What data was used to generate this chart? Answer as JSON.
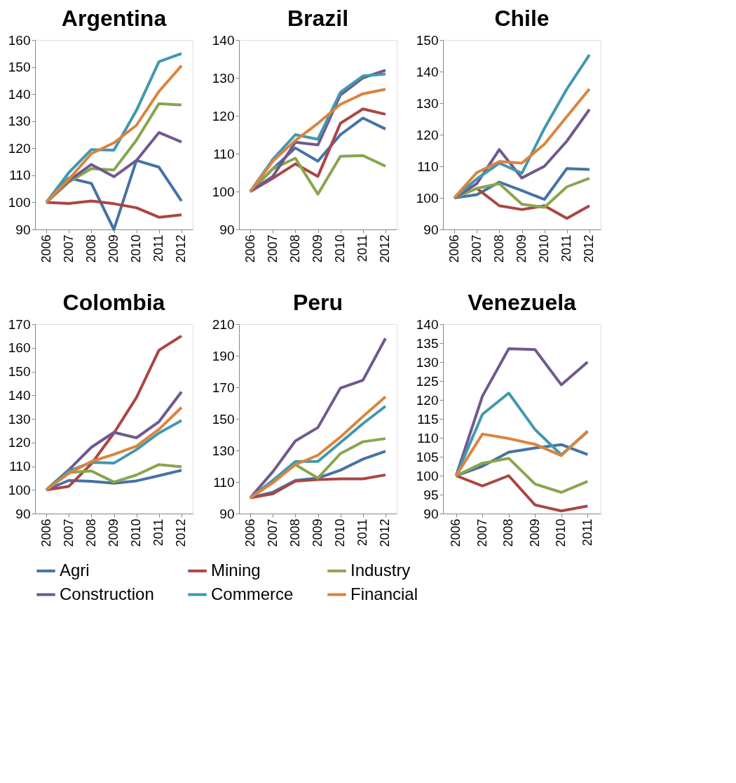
{
  "chart_data": [
    {
      "type": "line",
      "title": "Argentina",
      "categories": [
        "2006",
        "2007",
        "2008",
        "2009",
        "2010",
        "2011",
        "2012"
      ],
      "ylim": [
        90,
        160
      ],
      "yticks": [
        90,
        100,
        110,
        120,
        130,
        140,
        150,
        160
      ],
      "grid": false,
      "legend": "bottom",
      "series": [
        {
          "name": "Agri",
          "color": "#4572a7",
          "values": [
            100,
            109,
            107,
            90,
            115.5,
            113,
            100.5
          ]
        },
        {
          "name": "Mining",
          "color": "#aa4643",
          "values": [
            100,
            99.6,
            100.5,
            99.5,
            98,
            94.5,
            95.4
          ]
        },
        {
          "name": "Industry",
          "color": "#89a54e",
          "values": [
            100,
            107.5,
            112.5,
            112,
            123,
            136.5,
            136
          ]
        },
        {
          "name": "Construction",
          "color": "#71588f",
          "values": [
            100,
            108,
            114,
            109.5,
            115.5,
            125.8,
            122.3
          ]
        },
        {
          "name": "Commerce",
          "color": "#4198af",
          "values": [
            100,
            111,
            119.5,
            119.3,
            134,
            152,
            155
          ]
        },
        {
          "name": "Financial",
          "color": "#db843d",
          "values": [
            100,
            108.5,
            118,
            122,
            128.5,
            141,
            150.5
          ]
        }
      ]
    },
    {
      "type": "line",
      "title": "Brazil",
      "categories": [
        "2006",
        "2007",
        "2008",
        "2009",
        "2010",
        "2011",
        "2012"
      ],
      "ylim": [
        90,
        140
      ],
      "yticks": [
        90,
        100,
        110,
        120,
        130,
        140
      ],
      "grid": false,
      "series": [
        {
          "name": "Agri",
          "color": "#4572a7",
          "values": [
            100,
            106,
            111.5,
            108,
            115,
            119.4,
            116.5
          ]
        },
        {
          "name": "Mining",
          "color": "#aa4643",
          "values": [
            100,
            103.5,
            107.3,
            104,
            118,
            121.8,
            120.4
          ]
        },
        {
          "name": "Industry",
          "color": "#89a54e",
          "values": [
            100,
            106,
            108.8,
            99.3,
            109.3,
            109.5,
            106.7
          ]
        },
        {
          "name": "Construction",
          "color": "#71588f",
          "values": [
            100,
            104,
            113,
            112.3,
            125.5,
            130,
            132
          ]
        },
        {
          "name": "Commerce",
          "color": "#4198af",
          "values": [
            100,
            108.5,
            115,
            113.8,
            126.2,
            130.5,
            131
          ]
        },
        {
          "name": "Financial",
          "color": "#db843d",
          "values": [
            100,
            108,
            113.5,
            118,
            123,
            125.8,
            127
          ]
        }
      ]
    },
    {
      "type": "line",
      "title": "Chile",
      "categories": [
        "2006",
        "2007",
        "2008",
        "2009",
        "2010",
        "2011",
        "2012"
      ],
      "ylim": [
        90,
        150
      ],
      "yticks": [
        90,
        100,
        110,
        120,
        130,
        140,
        150
      ],
      "grid": false,
      "series": [
        {
          "name": "Agri",
          "color": "#4572a7",
          "values": [
            100,
            101,
            105,
            102.3,
            99.5,
            109.3,
            109
          ]
        },
        {
          "name": "Mining",
          "color": "#aa4643",
          "values": [
            100,
            103,
            97.5,
            96.3,
            97.5,
            93.5,
            97.5
          ]
        },
        {
          "name": "Industry",
          "color": "#89a54e",
          "values": [
            100,
            103,
            104.5,
            98,
            97,
            103.5,
            106.2
          ]
        },
        {
          "name": "Construction",
          "color": "#71588f",
          "values": [
            100,
            104.5,
            115.3,
            106.3,
            110,
            118,
            128
          ]
        },
        {
          "name": "Commerce",
          "color": "#4198af",
          "values": [
            100,
            106,
            111,
            107.8,
            122,
            134.5,
            145.3
          ]
        },
        {
          "name": "Financial",
          "color": "#db843d",
          "values": [
            100,
            108,
            111.5,
            111,
            117,
            125.8,
            134.5
          ]
        }
      ]
    },
    {
      "type": "line",
      "title": "Colombia",
      "categories": [
        "2006",
        "2007",
        "2008",
        "2009",
        "2010",
        "2011",
        "2012"
      ],
      "ylim": [
        90,
        170
      ],
      "yticks": [
        90,
        100,
        110,
        120,
        130,
        140,
        150,
        160,
        170
      ],
      "grid": false,
      "series": [
        {
          "name": "Agri",
          "color": "#4572a7",
          "values": [
            100,
            104,
            103.6,
            102.8,
            103.8,
            106,
            108.3
          ]
        },
        {
          "name": "Mining",
          "color": "#aa4643",
          "values": [
            100,
            101.5,
            111,
            124,
            139,
            159,
            165
          ]
        },
        {
          "name": "Industry",
          "color": "#89a54e",
          "values": [
            100,
            107.3,
            108,
            103.3,
            106.3,
            110.7,
            109.8
          ]
        },
        {
          "name": "Construction",
          "color": "#71588f",
          "values": [
            100,
            108.5,
            118,
            124.3,
            122,
            128.8,
            141.4
          ]
        },
        {
          "name": "Commerce",
          "color": "#4198af",
          "values": [
            100,
            108,
            111.6,
            111.3,
            117,
            124,
            129.3
          ]
        },
        {
          "name": "Financial",
          "color": "#db843d",
          "values": [
            100,
            107,
            112,
            115,
            118.5,
            125.6,
            134.8
          ]
        }
      ]
    },
    {
      "type": "line",
      "title": "Peru",
      "categories": [
        "2006",
        "2007",
        "2008",
        "2009",
        "2010",
        "2011",
        "2012"
      ],
      "ylim": [
        90,
        210
      ],
      "yticks": [
        90,
        110,
        130,
        150,
        170,
        190,
        210
      ],
      "grid": false,
      "series": [
        {
          "name": "Agri",
          "color": "#4572a7",
          "values": [
            100,
            103.5,
            111,
            112.5,
            117.5,
            124.5,
            129.5
          ]
        },
        {
          "name": "Mining",
          "color": "#aa4643",
          "values": [
            100,
            102.5,
            110.5,
            111.5,
            112,
            112,
            114.5
          ]
        },
        {
          "name": "Industry",
          "color": "#89a54e",
          "values": [
            100,
            111,
            121,
            112.5,
            128,
            135.5,
            137.5
          ]
        },
        {
          "name": "Construction",
          "color": "#71588f",
          "values": [
            100,
            116.5,
            136,
            144.5,
            169.5,
            174.5,
            201
          ]
        },
        {
          "name": "Commerce",
          "color": "#4198af",
          "values": [
            100,
            111,
            123,
            123,
            135,
            147,
            158
          ]
        },
        {
          "name": "Financial",
          "color": "#db843d",
          "values": [
            100,
            109.5,
            121,
            127,
            138.5,
            151.5,
            164
          ]
        }
      ]
    },
    {
      "type": "line",
      "title": "Venezuela",
      "categories": [
        "2006",
        "2007",
        "2008",
        "2009",
        "2010",
        "2011"
      ],
      "ylim": [
        90,
        140
      ],
      "yticks": [
        90,
        95,
        100,
        105,
        110,
        115,
        120,
        125,
        130,
        135,
        140
      ],
      "grid": false,
      "series": [
        {
          "name": "Agri",
          "color": "#4572a7",
          "values": [
            100,
            102.5,
            106.2,
            107.3,
            108.2,
            105.6
          ]
        },
        {
          "name": "Mining",
          "color": "#aa4643",
          "values": [
            100,
            97.3,
            100,
            92.3,
            90.7,
            92
          ]
        },
        {
          "name": "Industry",
          "color": "#89a54e",
          "values": [
            100,
            103.3,
            104.6,
            97.8,
            95.6,
            98.5
          ]
        },
        {
          "name": "Construction",
          "color": "#71588f",
          "values": [
            100,
            121,
            133.5,
            133.3,
            124,
            130
          ]
        },
        {
          "name": "Commerce",
          "color": "#4198af",
          "values": [
            100,
            116.2,
            121.8,
            112.2,
            105.5,
            111.6
          ]
        },
        {
          "name": "Financial",
          "color": "#db843d",
          "values": [
            100,
            111,
            109.8,
            108.3,
            105.3,
            111.8
          ]
        }
      ]
    }
  ]
}
